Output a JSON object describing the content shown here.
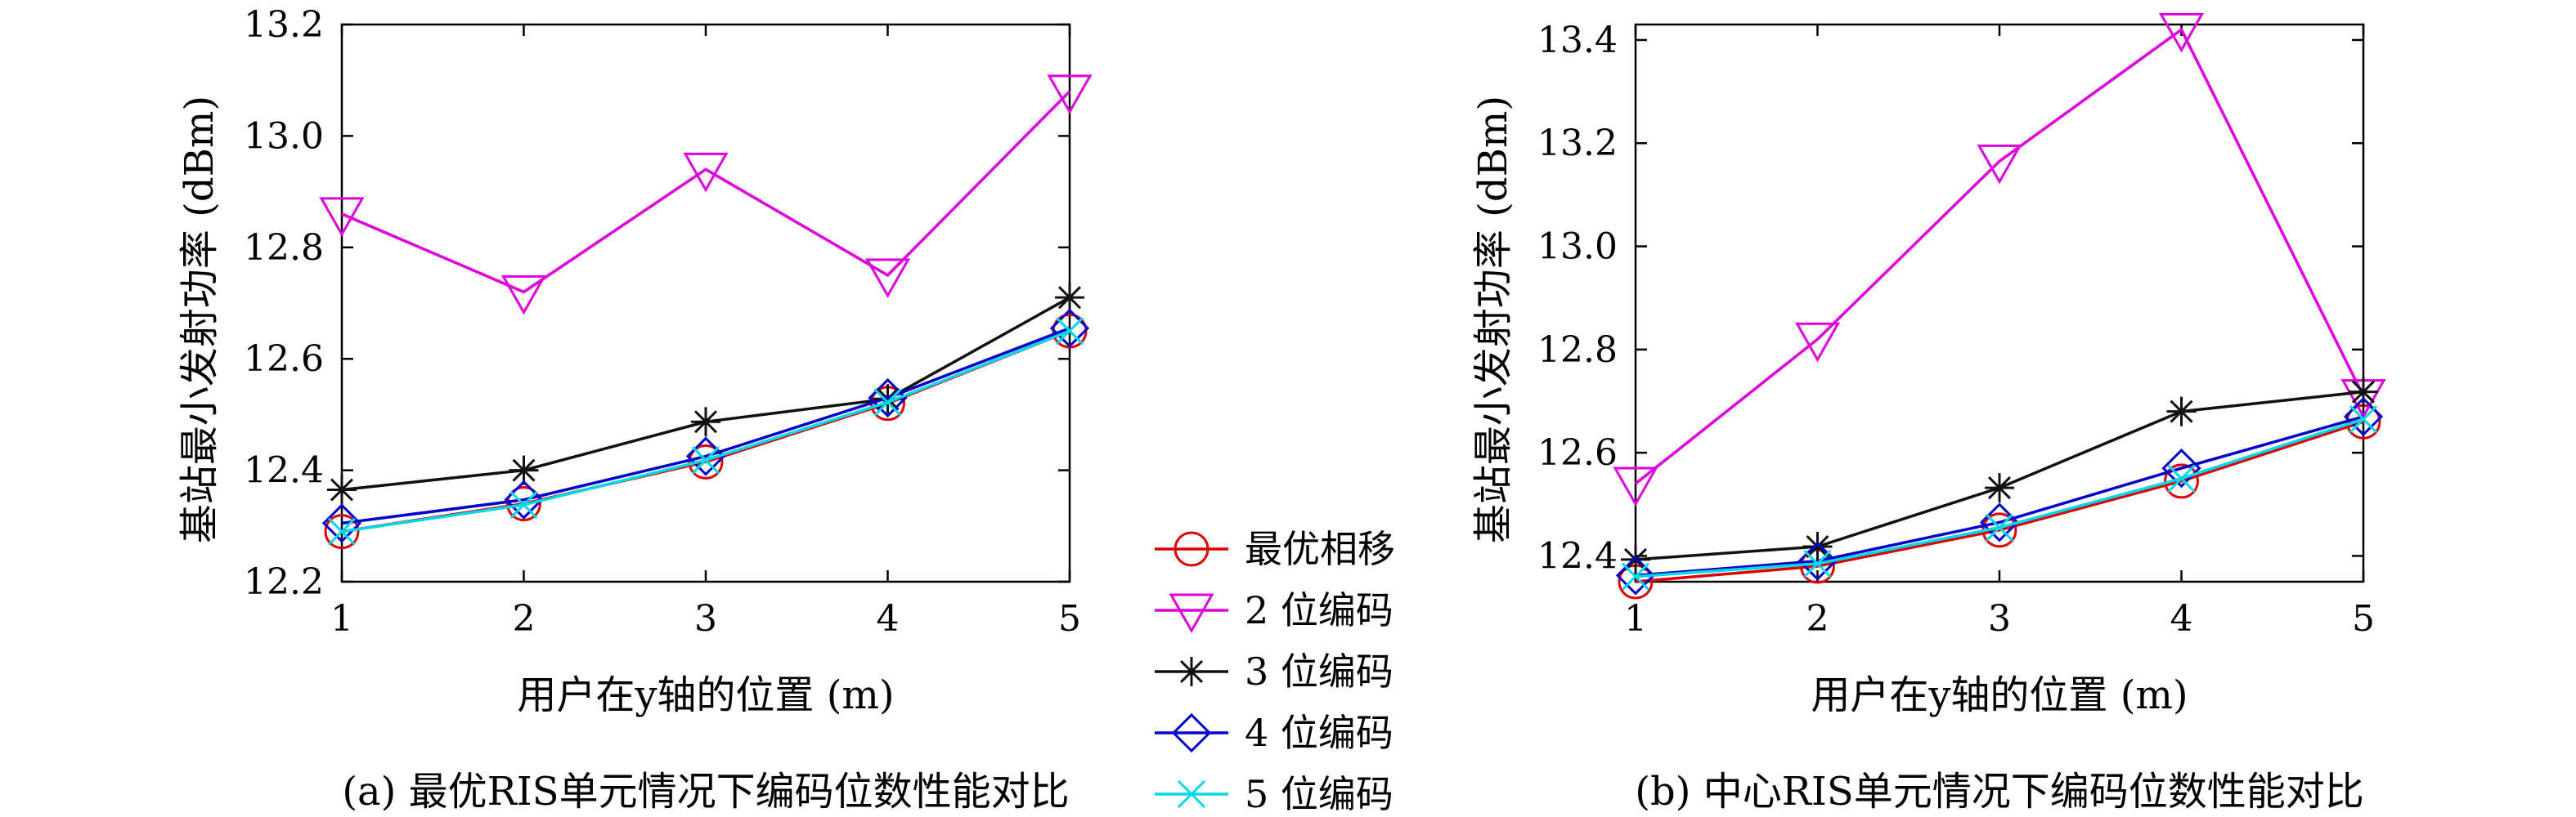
{
  "chart_data": [
    {
      "type": "line",
      "caption": "(a) 最优RIS单元情况下编码位数性能对比",
      "xlabel": "用户在y轴的位置 (m)",
      "ylabel": "基站最小发射功率 (dBm)",
      "x": [
        1,
        2,
        3,
        4,
        5
      ],
      "xticks": [
        "1",
        "2",
        "3",
        "4",
        "5"
      ],
      "xlim": [
        1,
        5
      ],
      "ylim": [
        12.2,
        13.2
      ],
      "yticks": [
        "12.2",
        "12.4",
        "12.6",
        "12.8",
        "13.0",
        "13.2"
      ],
      "grid": false,
      "series": [
        {
          "name": "最优相移",
          "color": "#dd0000",
          "marker": "circle",
          "values": [
            12.29,
            12.34,
            12.415,
            12.52,
            12.65
          ]
        },
        {
          "name": "2 位编码",
          "color": "#dd00dd",
          "marker": "triangle-down",
          "values": [
            12.86,
            12.72,
            12.94,
            12.75,
            13.08
          ]
        },
        {
          "name": "3 位编码",
          "color": "#111111",
          "marker": "star",
          "values": [
            12.365,
            12.4,
            12.487,
            12.528,
            12.71
          ]
        },
        {
          "name": "4 位编码",
          "color": "#0000cc",
          "marker": "diamond",
          "values": [
            12.305,
            12.347,
            12.425,
            12.53,
            12.655
          ]
        },
        {
          "name": "5 位编码",
          "color": "#00d8e8",
          "marker": "x",
          "values": [
            12.29,
            12.338,
            12.418,
            12.522,
            12.65
          ]
        }
      ]
    },
    {
      "type": "line",
      "caption": "(b) 中心RIS单元情况下编码位数性能对比",
      "xlabel": "用户在y轴的位置 (m)",
      "ylabel": "基站最小发射功率 (dBm)",
      "x": [
        1,
        2,
        3,
        4,
        5
      ],
      "xticks": [
        "1",
        "2",
        "3",
        "4",
        "5"
      ],
      "xlim": [
        1,
        5
      ],
      "ylim": [
        12.35,
        13.43
      ],
      "yticks": [
        "12.4",
        "12.6",
        "12.8",
        "13.0",
        "13.2",
        "13.4"
      ],
      "grid": false,
      "series": [
        {
          "name": "最优相移",
          "color": "#dd0000",
          "marker": "circle",
          "values": [
            12.35,
            12.38,
            12.45,
            12.545,
            12.66
          ]
        },
        {
          "name": "2 位编码",
          "color": "#dd00dd",
          "marker": "triangle-down",
          "values": [
            12.54,
            12.82,
            13.165,
            13.42,
            12.71
          ]
        },
        {
          "name": "3 位编码",
          "color": "#111111",
          "marker": "star",
          "values": [
            12.393,
            12.418,
            12.532,
            12.68,
            12.718
          ]
        },
        {
          "name": "4 位编码",
          "color": "#0000cc",
          "marker": "diamond",
          "values": [
            12.362,
            12.39,
            12.465,
            12.57,
            12.67
          ]
        },
        {
          "name": "5 位编码",
          "color": "#00d8e8",
          "marker": "x",
          "values": [
            12.36,
            12.385,
            12.455,
            12.55,
            12.665
          ]
        }
      ]
    }
  ],
  "legend": {
    "placement": "center-between-panels",
    "entries": [
      "最优相移",
      "2 位编码",
      "3 位编码",
      "4 位编码",
      "5 位编码"
    ]
  }
}
